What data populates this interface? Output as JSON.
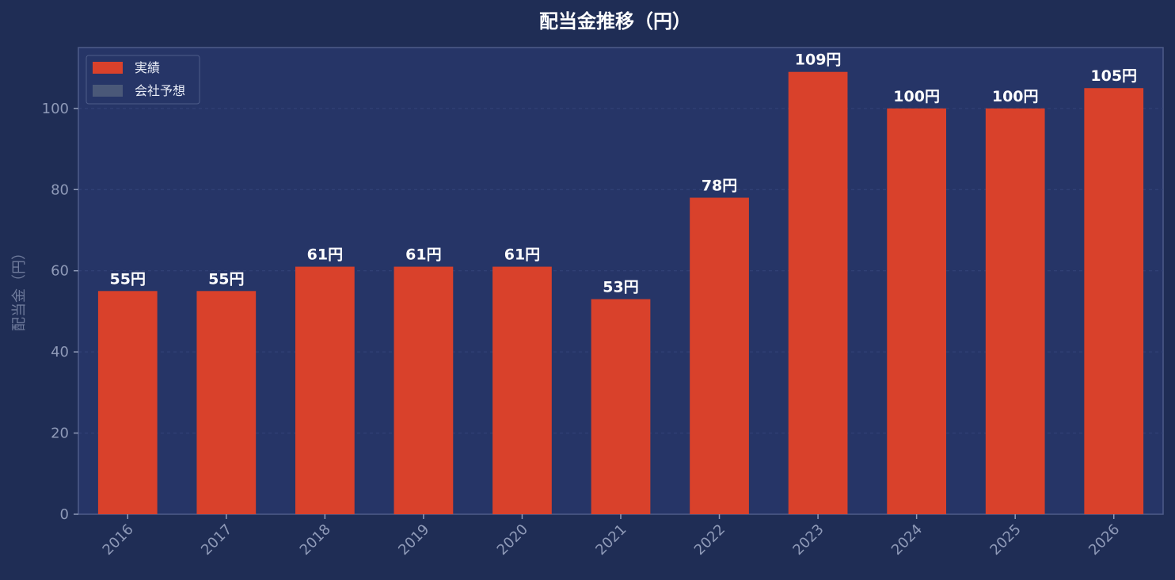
{
  "chart_data": {
    "type": "bar",
    "title": "配当金推移（円）",
    "xlabel": "",
    "ylabel": "配当金（円）",
    "categories": [
      "2016",
      "2017",
      "2018",
      "2019",
      "2020",
      "2021",
      "2022",
      "2023",
      "2024",
      "2025",
      "2026"
    ],
    "series": [
      {
        "name": "実績",
        "values": [
          55,
          55,
          61,
          61,
          61,
          53,
          78,
          109,
          100,
          100,
          105
        ],
        "color": "#d9412b"
      }
    ],
    "value_labels": [
      "55円",
      "55円",
      "61円",
      "61円",
      "61円",
      "53円",
      "78円",
      "109円",
      "100円",
      "100円",
      "105円"
    ],
    "legend": {
      "placement": "top-left",
      "entries": [
        {
          "label": "実績",
          "color": "#d9412b"
        },
        {
          "label": "会社予想",
          "color": "#4a5878"
        }
      ]
    },
    "ylim": [
      0,
      115
    ],
    "yticks": [
      0,
      20,
      40,
      60,
      80,
      100
    ],
    "grid": true,
    "colors": {
      "background": "#1f2d55",
      "plot_background": "#263567",
      "grid": "#34447a",
      "axis": "#4e5d8a",
      "tick_text": "#8f9ab8"
    }
  }
}
